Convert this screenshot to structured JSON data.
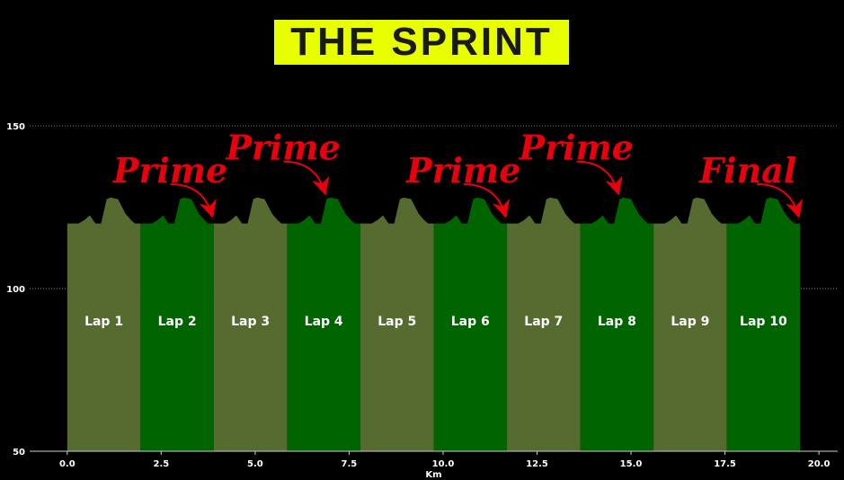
{
  "title": "THE SPRINT",
  "colors": {
    "title_bg": "#e8ff00",
    "lap_odd": "#556b2f",
    "lap_even": "#006400",
    "annotation": "#e8000d"
  },
  "chart_data": {
    "type": "area",
    "xlabel": "Km",
    "ylabel": "",
    "xlim": [
      -1,
      20.5
    ],
    "ylim": [
      50,
      155
    ],
    "x_ticks": [
      "0.0",
      "2.5",
      "5.0",
      "7.5",
      "10.0",
      "12.5",
      "15.0",
      "17.5",
      "20.0"
    ],
    "y_ticks": [
      "50",
      "100",
      "150"
    ],
    "grid": "horizontal dotted",
    "lap_length": 1.95,
    "lap_profile": {
      "x": [
        0,
        0.3,
        0.45,
        0.6,
        0.75,
        0.9,
        1.05,
        1.15,
        1.35,
        1.55,
        1.7,
        1.8,
        1.95
      ],
      "y": [
        120,
        120,
        121,
        122.5,
        120,
        120,
        127.5,
        128,
        127.5,
        123,
        121,
        120,
        120
      ]
    },
    "laps": [
      "Lap 1",
      "Lap 2",
      "Lap 3",
      "Lap 4",
      "Lap 5",
      "Lap 6",
      "Lap 7",
      "Lap 8",
      "Lap 9",
      "Lap 10"
    ],
    "annotations": [
      {
        "text": "Prime",
        "target_x": 3.9,
        "target_y": 121
      },
      {
        "text": "Prime",
        "target_x": 6.9,
        "target_y": 128
      },
      {
        "text": "Prime",
        "target_x": 11.7,
        "target_y": 121
      },
      {
        "text": "Prime",
        "target_x": 14.7,
        "target_y": 128
      },
      {
        "text": "Final",
        "target_x": 19.5,
        "target_y": 121
      }
    ]
  }
}
